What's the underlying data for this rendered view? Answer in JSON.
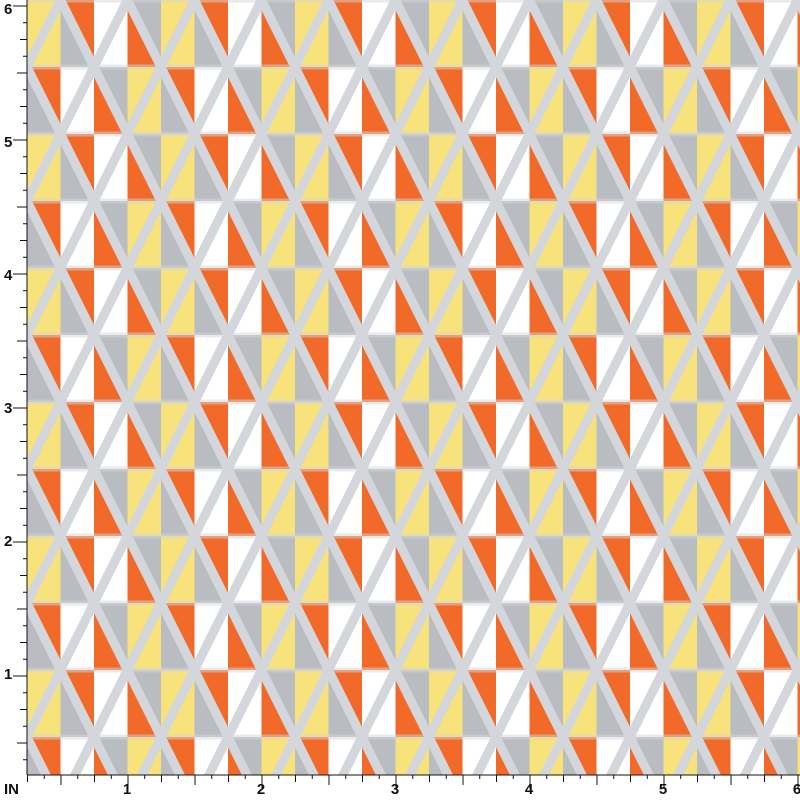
{
  "ruler": {
    "left_labels": [
      "6",
      "5",
      "4",
      "3",
      "2",
      "1"
    ],
    "bottom_unit": "IN",
    "bottom_labels": [
      "1",
      "2",
      "3",
      "4",
      "5",
      "6"
    ]
  }
}
